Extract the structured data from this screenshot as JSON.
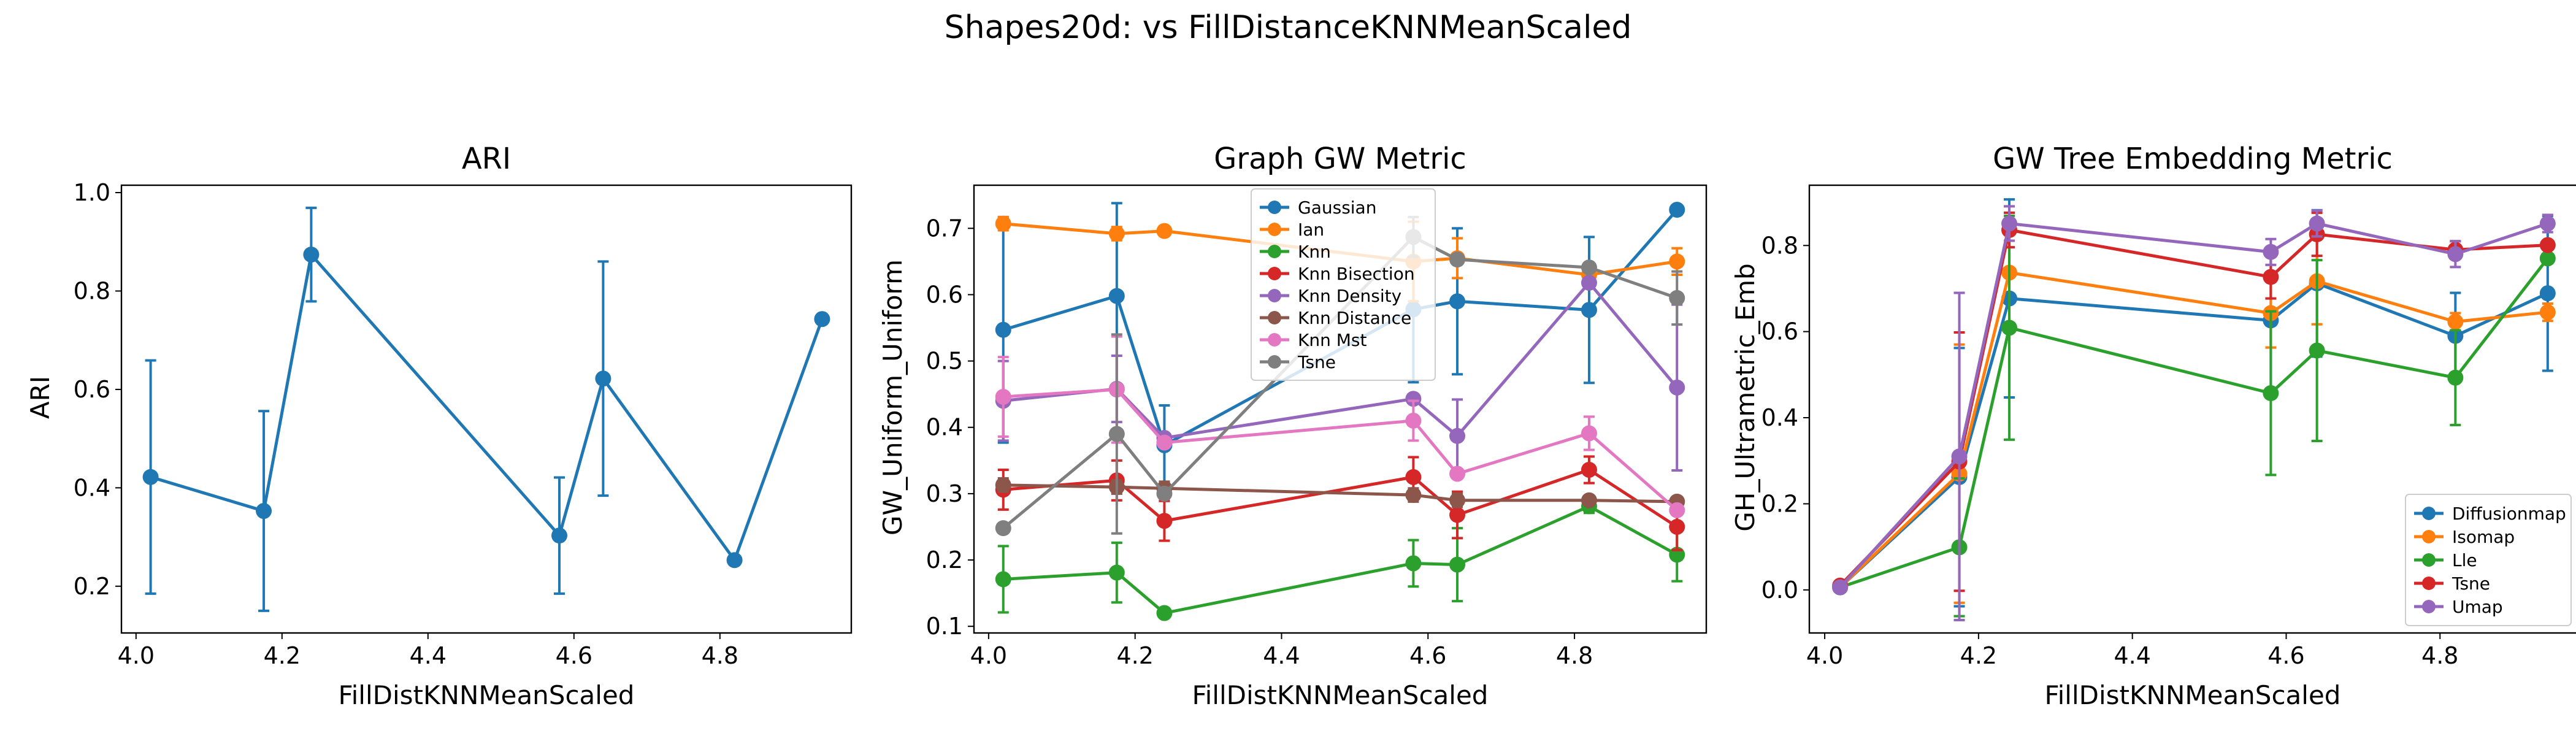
{
  "figure": {
    "suptitle": "Shapes20d: vs FillDistanceKNNMeanScaled"
  },
  "chart_data": [
    {
      "type": "line",
      "title": "ARI",
      "xlabel": "FillDistKNNMeanScaled",
      "ylabel": "ARI",
      "xlim": [
        3.98,
        4.98
      ],
      "ylim": [
        0.105,
        1.015
      ],
      "xticks": [
        4.0,
        4.2,
        4.4,
        4.6,
        4.8
      ],
      "yticks": [
        0.2,
        0.4,
        0.6,
        0.8,
        1.0
      ],
      "x": [
        4.02,
        4.175,
        4.24,
        4.58,
        4.64,
        4.82,
        4.94
      ],
      "legend": null,
      "series": [
        {
          "name": "",
          "color": "#1f77b4",
          "values": [
            0.422,
            0.353,
            0.874,
            0.303,
            0.622,
            0.253,
            0.743
          ],
          "err": [
            0.237,
            0.203,
            0.095,
            0.118,
            0.238,
            0.0,
            0.0
          ]
        }
      ]
    },
    {
      "type": "line",
      "title": "Graph GW Metric",
      "xlabel": "FillDistKNNMeanScaled",
      "ylabel": "GW_Uniform_Uniform",
      "xlim": [
        3.98,
        4.98
      ],
      "ylim": [
        0.09,
        0.765
      ],
      "xticks": [
        4.0,
        4.2,
        4.4,
        4.6,
        4.8
      ],
      "yticks": [
        0.1,
        0.2,
        0.3,
        0.4,
        0.5,
        0.6,
        0.7
      ],
      "x": [
        4.02,
        4.175,
        4.24,
        4.58,
        4.64,
        4.82,
        4.94
      ],
      "legend": "upper-center",
      "series": [
        {
          "name": "Gaussian",
          "color": "#1f77b4",
          "values": [
            0.547,
            0.598,
            0.373,
            0.578,
            0.59,
            0.577,
            0.728
          ],
          "err": [
            0.17,
            0.14,
            0.06,
            0.11,
            0.11,
            0.11,
            0.0
          ]
        },
        {
          "name": "Ian",
          "color": "#ff7f0e",
          "values": [
            0.707,
            0.692,
            0.696,
            0.65,
            0.655,
            0.63,
            0.65
          ],
          "err": [
            0.01,
            0.01,
            0.0,
            0.06,
            0.03,
            0.01,
            0.02
          ]
        },
        {
          "name": "Knn",
          "color": "#2ca02c",
          "values": [
            0.171,
            0.181,
            0.12,
            0.195,
            0.193,
            0.281,
            0.208
          ],
          "err": [
            0.05,
            0.045,
            0.0,
            0.035,
            0.055,
            0.01,
            0.04
          ]
        },
        {
          "name": "Knn Bisection",
          "color": "#d62728",
          "values": [
            0.306,
            0.32,
            0.259,
            0.325,
            0.268,
            0.336,
            0.25
          ],
          "err": [
            0.03,
            0.03,
            0.03,
            0.03,
            0.035,
            0.02,
            0.035
          ]
        },
        {
          "name": "Knn Density",
          "color": "#9467bd",
          "values": [
            0.44,
            0.458,
            0.384,
            0.443,
            0.387,
            0.618,
            0.46
          ],
          "err": [
            0.06,
            0.05,
            0.0,
            0.0,
            0.055,
            0.0,
            0.125
          ]
        },
        {
          "name": "Knn Distance",
          "color": "#8c564b",
          "values": [
            0.313,
            0.31,
            0.308,
            0.298,
            0.29,
            0.29,
            0.288
          ],
          "err": [
            0.01,
            0.01,
            0.01,
            0.01,
            0.01,
            0.0,
            0.0
          ]
        },
        {
          "name": "Knn Mst",
          "color": "#e377c2",
          "values": [
            0.446,
            0.457,
            0.377,
            0.41,
            0.33,
            0.391,
            0.275
          ],
          "err": [
            0.06,
            0.08,
            0.0,
            0.03,
            0.0,
            0.025,
            0.0
          ]
        },
        {
          "name": "Tsne",
          "color": "#7f7f7f",
          "values": [
            0.248,
            0.39,
            0.3,
            0.687,
            0.653,
            0.641,
            0.595
          ],
          "err": [
            0.0,
            0.15,
            0.0,
            0.03,
            0.0,
            0.0,
            0.04
          ]
        }
      ]
    },
    {
      "type": "line",
      "title": "GW Tree Embedding Metric",
      "xlabel": "FillDistKNNMeanScaled",
      "ylabel": "GH_Ultrametric_Emb",
      "xlim": [
        3.98,
        4.98
      ],
      "ylim": [
        -0.1,
        0.94
      ],
      "xticks": [
        4.0,
        4.2,
        4.4,
        4.6,
        4.8
      ],
      "yticks": [
        0.0,
        0.2,
        0.4,
        0.6,
        0.8
      ],
      "yticklabels": [
        "0.0",
        "0.2",
        "0.4",
        "0.6",
        "0.8"
      ],
      "x": [
        4.02,
        4.175,
        4.24,
        4.58,
        4.64,
        4.82,
        4.94
      ],
      "legend": "lower-right",
      "series": [
        {
          "name": "Diffusionmap",
          "color": "#1f77b4",
          "values": [
            0.006,
            0.262,
            0.677,
            0.626,
            0.712,
            0.59,
            0.689
          ],
          "err": [
            0.0,
            0.3,
            0.23,
            0.16,
            0.17,
            0.1,
            0.18
          ]
        },
        {
          "name": "Isomap",
          "color": "#ff7f0e",
          "values": [
            0.006,
            0.27,
            0.737,
            0.643,
            0.717,
            0.623,
            0.645
          ],
          "err": [
            0.0,
            0.3,
            0.12,
            0.08,
            0.1,
            0.02,
            0.02
          ]
        },
        {
          "name": "Lle",
          "color": "#2ca02c",
          "values": [
            0.006,
            0.099,
            0.609,
            0.457,
            0.556,
            0.493,
            0.77
          ],
          "err": [
            0.0,
            0.16,
            0.26,
            0.19,
            0.21,
            0.11,
            0.0
          ]
        },
        {
          "name": "Tsne",
          "color": "#d62728",
          "values": [
            0.01,
            0.298,
            0.836,
            0.727,
            0.826,
            0.79,
            0.801
          ],
          "err": [
            0.0,
            0.3,
            0.04,
            0.05,
            0.05,
            0.02,
            0.0
          ]
        },
        {
          "name": "Umap",
          "color": "#9467bd",
          "values": [
            0.006,
            0.31,
            0.851,
            0.785,
            0.851,
            0.78,
            0.851
          ],
          "err": [
            0.0,
            0.38,
            0.04,
            0.03,
            0.03,
            0.03,
            0.02
          ]
        }
      ]
    }
  ]
}
